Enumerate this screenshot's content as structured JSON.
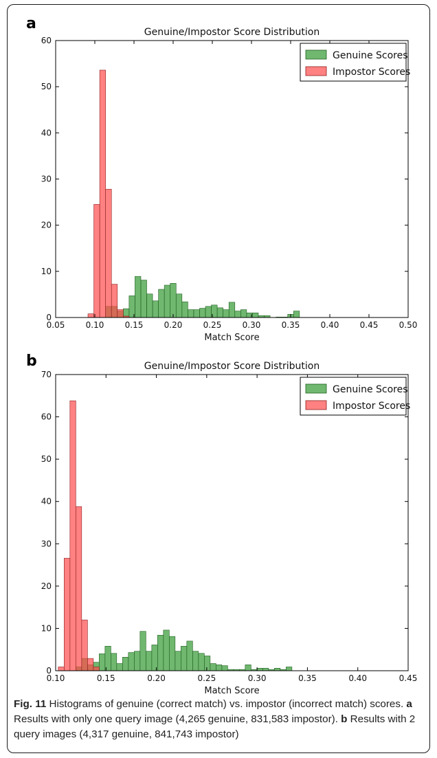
{
  "chart_data": [
    {
      "type": "bar",
      "panel_label": "a",
      "title": "Genuine/Impostor Score Distribution",
      "xlabel": "Match Score",
      "ylabel": "",
      "xlim": [
        0.05,
        0.5
      ],
      "ylim": [
        0,
        60
      ],
      "xticks": [
        "0.05",
        "0.10",
        "0.15",
        "0.20",
        "0.25",
        "0.30",
        "0.35",
        "0.40",
        "0.45",
        "0.50"
      ],
      "yticks": [
        "0",
        "10",
        "20",
        "30",
        "40",
        "50",
        "60"
      ],
      "legend": "top-right",
      "bin_width": 0.0075,
      "series": [
        {
          "name": "Genuine Scores",
          "color": "#339933",
          "bins": [
            {
              "x": 0.1175,
              "y": 2.4
            },
            {
              "x": 0.125,
              "y": 2.4
            },
            {
              "x": 0.1325,
              "y": 1.4
            },
            {
              "x": 0.14,
              "y": 1.9
            },
            {
              "x": 0.1475,
              "y": 4.7
            },
            {
              "x": 0.155,
              "y": 8.9
            },
            {
              "x": 0.1625,
              "y": 8.1
            },
            {
              "x": 0.17,
              "y": 5.1
            },
            {
              "x": 0.1775,
              "y": 3.6
            },
            {
              "x": 0.185,
              "y": 6.1
            },
            {
              "x": 0.1925,
              "y": 7.0
            },
            {
              "x": 0.2,
              "y": 7.4
            },
            {
              "x": 0.2075,
              "y": 5.1
            },
            {
              "x": 0.215,
              "y": 3.4
            },
            {
              "x": 0.2225,
              "y": 1.7
            },
            {
              "x": 0.23,
              "y": 1.7
            },
            {
              "x": 0.2375,
              "y": 2.0
            },
            {
              "x": 0.245,
              "y": 2.4
            },
            {
              "x": 0.2525,
              "y": 2.7
            },
            {
              "x": 0.26,
              "y": 2.1
            },
            {
              "x": 0.2675,
              "y": 1.7
            },
            {
              "x": 0.275,
              "y": 3.3
            },
            {
              "x": 0.2825,
              "y": 1.4
            },
            {
              "x": 0.29,
              "y": 1.7
            },
            {
              "x": 0.2975,
              "y": 1.0
            },
            {
              "x": 0.305,
              "y": 1.0
            },
            {
              "x": 0.3125,
              "y": 0.4
            },
            {
              "x": 0.32,
              "y": 0.4
            },
            {
              "x": 0.335,
              "y": 0.1
            },
            {
              "x": 0.3425,
              "y": 0.1
            },
            {
              "x": 0.35,
              "y": 0.7
            },
            {
              "x": 0.3575,
              "y": 1.4
            }
          ]
        },
        {
          "name": "Impostor Scores",
          "color": "#ff4c4c",
          "bins": [
            {
              "x": 0.095,
              "y": 0.8
            },
            {
              "x": 0.1025,
              "y": 24.5
            },
            {
              "x": 0.11,
              "y": 53.6
            },
            {
              "x": 0.1175,
              "y": 27.8
            },
            {
              "x": 0.125,
              "y": 7.2
            },
            {
              "x": 0.1325,
              "y": 1.7
            },
            {
              "x": 0.14,
              "y": 0.3
            }
          ]
        }
      ]
    },
    {
      "type": "bar",
      "panel_label": "b",
      "title": "Genuine/Impostor Score Distribution",
      "xlabel": "Match Score",
      "ylabel": "",
      "xlim": [
        0.1,
        0.45
      ],
      "ylim": [
        0,
        70
      ],
      "xticks": [
        "0.10",
        "0.15",
        "0.20",
        "0.25",
        "0.30",
        "0.35",
        "0.40",
        "0.45"
      ],
      "yticks": [
        "0",
        "10",
        "20",
        "30",
        "40",
        "50",
        "60",
        "70"
      ],
      "legend": "top-right",
      "bin_width": 0.0058,
      "series": [
        {
          "name": "Genuine Scores",
          "color": "#339933",
          "bins": [
            {
              "x": 0.1229,
              "y": 0.9
            },
            {
              "x": 0.1287,
              "y": 2.9
            },
            {
              "x": 0.1345,
              "y": 1.4
            },
            {
              "x": 0.1403,
              "y": 2.0
            },
            {
              "x": 0.1461,
              "y": 4.0
            },
            {
              "x": 0.1519,
              "y": 5.8
            },
            {
              "x": 0.1577,
              "y": 4.1
            },
            {
              "x": 0.1635,
              "y": 1.7
            },
            {
              "x": 0.1693,
              "y": 3.2
            },
            {
              "x": 0.1751,
              "y": 4.3
            },
            {
              "x": 0.1809,
              "y": 4.6
            },
            {
              "x": 0.1867,
              "y": 9.3
            },
            {
              "x": 0.1925,
              "y": 4.6
            },
            {
              "x": 0.1983,
              "y": 6.1
            },
            {
              "x": 0.2041,
              "y": 8.4
            },
            {
              "x": 0.2099,
              "y": 9.6
            },
            {
              "x": 0.2157,
              "y": 8.1
            },
            {
              "x": 0.2215,
              "y": 4.6
            },
            {
              "x": 0.2273,
              "y": 5.8
            },
            {
              "x": 0.2331,
              "y": 7.0
            },
            {
              "x": 0.2389,
              "y": 4.6
            },
            {
              "x": 0.2447,
              "y": 4.1
            },
            {
              "x": 0.2505,
              "y": 3.5
            },
            {
              "x": 0.2563,
              "y": 1.7
            },
            {
              "x": 0.2621,
              "y": 1.4
            },
            {
              "x": 0.2679,
              "y": 1.2
            },
            {
              "x": 0.2737,
              "y": 0.3
            },
            {
              "x": 0.2795,
              "y": 0.3
            },
            {
              "x": 0.2853,
              "y": 0.3
            },
            {
              "x": 0.2911,
              "y": 1.4
            },
            {
              "x": 0.2969,
              "y": 0.3
            },
            {
              "x": 0.3027,
              "y": 0.6
            },
            {
              "x": 0.3085,
              "y": 0.6
            },
            {
              "x": 0.3143,
              "y": 0.3
            },
            {
              "x": 0.3201,
              "y": 0.6
            },
            {
              "x": 0.3259,
              "y": 0.3
            },
            {
              "x": 0.3317,
              "y": 0.9
            }
          ]
        },
        {
          "name": "Impostor Scores",
          "color": "#ff4c4c",
          "bins": [
            {
              "x": 0.1055,
              "y": 0.9
            },
            {
              "x": 0.1113,
              "y": 26.6
            },
            {
              "x": 0.1171,
              "y": 63.8
            },
            {
              "x": 0.1229,
              "y": 38.8
            },
            {
              "x": 0.1287,
              "y": 12.0
            },
            {
              "x": 0.1345,
              "y": 2.9
            },
            {
              "x": 0.1403,
              "y": 0.9
            }
          ]
        }
      ]
    }
  ],
  "caption": {
    "fig_label": "Fig. 11",
    "text1": " Histograms of genuine (correct match) vs. impostor (incorrect match) scores. ",
    "label_a": "a",
    "text2": " Results with only one query image (4,265 genuine, 831,583 impostor). ",
    "label_b": "b",
    "text3": " Results with 2 query images (4,317 genuine, 841,743 impostor)"
  }
}
